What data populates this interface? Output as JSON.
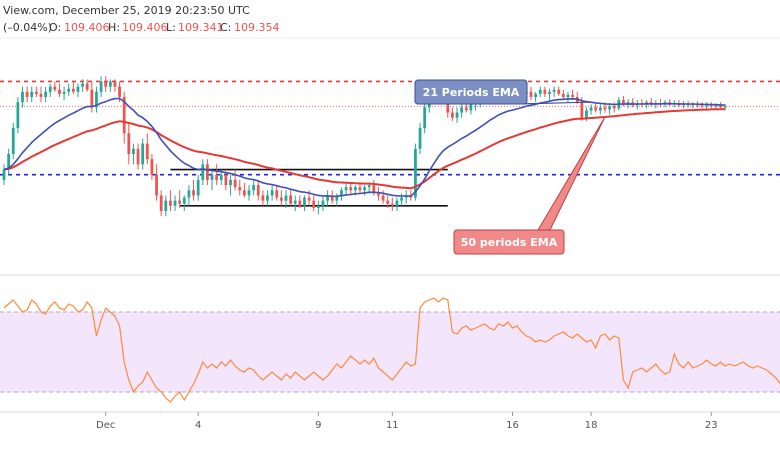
{
  "header": {
    "title": "View.com, December 25, 2019 20:23:50 UTC",
    "change": "(–0.04%)",
    "o_label": "O:",
    "o_value": "109.406",
    "h_label": "H:",
    "h_value": "109.406",
    "l_label": "L:",
    "l_value": "109.341",
    "c_label": "C:",
    "c_value": "109.354"
  },
  "colors": {
    "up": "#26a69a",
    "down": "#ef5350",
    "ema21": "#3f51b5",
    "ema50": "#e53935",
    "resistance": "#e53935",
    "support": "#2222dd",
    "rsi_line": "#ff8a3d",
    "rsi_band": "#f3e5fb",
    "ema21_label_bg": "#7b8fc4",
    "ema50_label_bg": "#f08a8a"
  },
  "chart_data": [
    {
      "type": "candlestick",
      "x_tick_labels": [
        "Dec",
        "4",
        "9",
        "11",
        "16",
        "18",
        "23"
      ],
      "x_tick_index": [
        22,
        42,
        68,
        84,
        110,
        127,
        153
      ],
      "index_range": [
        0,
        167
      ],
      "ylim": [
        108.3,
        110.5
      ],
      "resistance_level": 110.1,
      "support_level": 109.2,
      "range_box_lines": [
        {
          "from": 36,
          "to": 96,
          "level": 109.25
        },
        {
          "from": 38,
          "to": 96,
          "level": 108.9
        }
      ],
      "ohlc": [
        [
          109.15,
          109.3,
          109.1,
          109.25
        ],
        [
          109.25,
          109.45,
          109.2,
          109.4
        ],
        [
          109.4,
          109.7,
          109.35,
          109.65
        ],
        [
          109.65,
          109.95,
          109.6,
          109.9
        ],
        [
          109.9,
          110.05,
          109.85,
          110.0
        ],
        [
          110.0,
          110.05,
          109.9,
          109.95
        ],
        [
          109.95,
          110.05,
          109.9,
          110.0
        ],
        [
          110.0,
          110.05,
          109.95,
          109.98
        ],
        [
          109.98,
          110.05,
          109.9,
          109.95
        ],
        [
          109.95,
          110.05,
          109.9,
          110.0
        ],
        [
          110.0,
          110.08,
          109.95,
          110.05
        ],
        [
          110.05,
          110.1,
          110.0,
          110.02
        ],
        [
          110.02,
          110.08,
          109.95,
          109.98
        ],
        [
          109.98,
          110.05,
          109.92,
          110.0
        ],
        [
          110.0,
          110.08,
          109.96,
          110.03
        ],
        [
          110.03,
          110.1,
          109.98,
          110.0
        ],
        [
          110.0,
          110.08,
          109.95,
          110.05
        ],
        [
          110.05,
          110.12,
          110.0,
          110.08
        ],
        [
          110.08,
          110.12,
          110.0,
          110.02
        ],
        [
          110.02,
          110.1,
          109.8,
          109.85
        ],
        [
          109.85,
          110.05,
          109.8,
          110.0
        ],
        [
          110.0,
          110.15,
          109.95,
          110.1
        ],
        [
          110.1,
          110.15,
          110.0,
          110.05
        ],
        [
          110.05,
          110.12,
          110.0,
          110.1
        ],
        [
          110.1,
          110.12,
          110.0,
          110.05
        ],
        [
          110.05,
          110.1,
          109.9,
          109.95
        ],
        [
          109.95,
          110.0,
          109.5,
          109.6
        ],
        [
          109.6,
          109.7,
          109.3,
          109.4
        ],
        [
          109.4,
          109.5,
          109.3,
          109.45
        ],
        [
          109.45,
          109.5,
          109.25,
          109.3
        ],
        [
          109.3,
          109.55,
          109.25,
          109.5
        ],
        [
          109.5,
          109.6,
          109.3,
          109.35
        ],
        [
          109.35,
          109.4,
          109.15,
          109.2
        ],
        [
          109.2,
          109.3,
          108.95,
          109.0
        ],
        [
          109.0,
          109.05,
          108.8,
          108.85
        ],
        [
          108.85,
          109.0,
          108.8,
          108.95
        ],
        [
          108.95,
          109.05,
          108.85,
          108.9
        ],
        [
          108.9,
          109.0,
          108.85,
          108.95
        ],
        [
          108.95,
          109.05,
          108.88,
          108.92
        ],
        [
          108.92,
          109.0,
          108.85,
          108.98
        ],
        [
          108.98,
          109.1,
          108.9,
          109.05
        ],
        [
          109.05,
          109.15,
          108.95,
          109.0
        ],
        [
          109.0,
          109.2,
          108.95,
          109.15
        ],
        [
          109.15,
          109.35,
          109.1,
          109.3
        ],
        [
          109.3,
          109.35,
          109.1,
          109.15
        ],
        [
          109.15,
          109.25,
          109.05,
          109.2
        ],
        [
          109.2,
          109.3,
          109.1,
          109.15
        ],
        [
          109.15,
          109.25,
          109.1,
          109.2
        ],
        [
          109.2,
          109.25,
          109.05,
          109.1
        ],
        [
          109.1,
          109.2,
          109.0,
          109.15
        ],
        [
          109.15,
          109.25,
          109.05,
          109.08
        ],
        [
          109.08,
          109.15,
          109.0,
          109.05
        ],
        [
          109.05,
          109.12,
          108.98,
          109.0
        ],
        [
          109.0,
          109.1,
          108.95,
          109.05
        ],
        [
          109.05,
          109.15,
          109.0,
          109.1
        ],
        [
          109.1,
          109.15,
          108.95,
          109.0
        ],
        [
          109.0,
          109.05,
          108.9,
          108.95
        ],
        [
          108.95,
          109.05,
          108.9,
          109.0
        ],
        [
          109.0,
          109.1,
          108.95,
          109.05
        ],
        [
          109.05,
          109.1,
          108.95,
          108.98
        ],
        [
          108.98,
          109.05,
          108.9,
          108.95
        ],
        [
          108.95,
          109.05,
          108.88,
          109.0
        ],
        [
          109.0,
          109.05,
          108.9,
          108.92
        ],
        [
          108.92,
          109.0,
          108.85,
          108.95
        ],
        [
          108.95,
          109.0,
          108.88,
          108.9
        ],
        [
          108.9,
          109.0,
          108.85,
          108.98
        ],
        [
          108.98,
          109.05,
          108.9,
          108.95
        ],
        [
          108.95,
          109.0,
          108.85,
          108.88
        ],
        [
          108.88,
          108.95,
          108.82,
          108.9
        ],
        [
          108.9,
          109.0,
          108.85,
          108.95
        ],
        [
          108.95,
          109.05,
          108.9,
          109.0
        ],
        [
          109.0,
          109.05,
          108.92,
          108.95
        ],
        [
          108.95,
          109.02,
          108.9,
          109.0
        ],
        [
          109.0,
          109.08,
          108.95,
          109.05
        ],
        [
          109.05,
          109.12,
          109.0,
          109.08
        ],
        [
          109.08,
          109.12,
          109.0,
          109.05
        ],
        [
          109.05,
          109.1,
          109.0,
          109.08
        ],
        [
          109.08,
          109.12,
          109.02,
          109.05
        ],
        [
          109.05,
          109.1,
          109.0,
          109.08
        ],
        [
          109.08,
          109.12,
          109.02,
          109.1
        ],
        [
          109.1,
          109.15,
          109.0,
          109.02
        ],
        [
          109.02,
          109.08,
          108.95,
          109.0
        ],
        [
          109.0,
          109.05,
          108.92,
          108.95
        ],
        [
          108.95,
          109.0,
          108.88,
          108.92
        ],
        [
          108.92,
          108.98,
          108.85,
          108.9
        ],
        [
          108.9,
          108.98,
          108.85,
          108.95
        ],
        [
          108.95,
          109.02,
          108.9,
          108.98
        ],
        [
          108.98,
          109.05,
          108.92,
          109.0
        ],
        [
          109.0,
          109.05,
          108.95,
          108.98
        ],
        [
          108.98,
          109.5,
          108.95,
          109.45
        ],
        [
          109.45,
          109.7,
          109.4,
          109.65
        ],
        [
          109.65,
          109.9,
          109.6,
          109.85
        ],
        [
          109.85,
          110.05,
          109.8,
          110.0
        ],
        [
          110.0,
          110.08,
          109.95,
          110.02
        ],
        [
          110.02,
          110.08,
          109.98,
          110.05
        ],
        [
          110.05,
          110.1,
          109.98,
          110.0
        ],
        [
          110.0,
          110.05,
          109.75,
          109.8
        ],
        [
          109.8,
          109.85,
          109.72,
          109.75
        ],
        [
          109.75,
          109.85,
          109.7,
          109.8
        ],
        [
          109.8,
          109.88,
          109.75,
          109.85
        ],
        [
          109.85,
          109.9,
          109.8,
          109.82
        ],
        [
          109.82,
          109.9,
          109.78,
          109.88
        ],
        [
          109.88,
          109.95,
          109.82,
          109.9
        ],
        [
          109.9,
          110.0,
          109.85,
          109.95
        ],
        [
          109.95,
          110.05,
          109.9,
          110.0
        ],
        [
          110.0,
          110.08,
          109.95,
          110.05
        ],
        [
          110.05,
          110.1,
          110.0,
          110.02
        ],
        [
          110.02,
          110.08,
          109.98,
          110.05
        ],
        [
          110.05,
          110.08,
          109.98,
          110.0
        ],
        [
          110.0,
          110.05,
          109.95,
          109.98
        ],
        [
          109.98,
          110.02,
          109.9,
          109.92
        ],
        [
          109.92,
          110.0,
          109.88,
          109.95
        ],
        [
          109.95,
          110.02,
          109.9,
          109.98
        ],
        [
          109.98,
          110.05,
          109.92,
          110.0
        ],
        [
          110.0,
          110.05,
          109.92,
          109.95
        ],
        [
          109.95,
          110.0,
          109.9,
          109.98
        ],
        [
          109.98,
          110.05,
          109.95,
          110.02
        ],
        [
          110.02,
          110.05,
          109.95,
          109.98
        ],
        [
          109.98,
          110.03,
          109.92,
          110.0
        ],
        [
          110.0,
          110.05,
          109.95,
          110.02
        ],
        [
          110.02,
          110.05,
          109.96,
          109.98
        ],
        [
          109.98,
          110.02,
          109.92,
          109.95
        ],
        [
          109.95,
          110.0,
          109.9,
          109.97
        ],
        [
          109.97,
          110.02,
          109.92,
          109.95
        ],
        [
          109.95,
          110.0,
          109.88,
          109.9
        ],
        [
          109.9,
          109.95,
          109.72,
          109.75
        ],
        [
          109.75,
          109.85,
          109.72,
          109.82
        ],
        [
          109.82,
          109.88,
          109.78,
          109.85
        ],
        [
          109.85,
          109.9,
          109.8,
          109.82
        ],
        [
          109.82,
          109.88,
          109.78,
          109.85
        ],
        [
          109.85,
          109.9,
          109.8,
          109.83
        ],
        [
          109.83,
          109.88,
          109.78,
          109.86
        ],
        [
          109.86,
          109.9,
          109.8,
          109.84
        ],
        [
          109.84,
          109.95,
          109.82,
          109.92
        ],
        [
          109.92,
          109.96,
          109.86,
          109.88
        ],
        [
          109.88,
          109.93,
          109.84,
          109.9
        ],
        [
          109.9,
          109.94,
          109.85,
          109.87
        ],
        [
          109.87,
          109.92,
          109.83,
          109.89
        ],
        [
          109.89,
          109.93,
          109.85,
          109.88
        ],
        [
          109.88,
          109.92,
          109.84,
          109.9
        ],
        [
          109.9,
          109.94,
          109.86,
          109.88
        ],
        [
          109.88,
          109.92,
          109.84,
          109.89
        ],
        [
          109.89,
          109.93,
          109.85,
          109.88
        ],
        [
          109.88,
          109.92,
          109.85,
          109.9
        ],
        [
          109.9,
          109.93,
          109.86,
          109.88
        ],
        [
          109.88,
          109.92,
          109.85,
          109.89
        ],
        [
          109.89,
          109.92,
          109.85,
          109.87
        ],
        [
          109.87,
          109.91,
          109.84,
          109.88
        ],
        [
          109.88,
          109.91,
          109.85,
          109.87
        ],
        [
          109.87,
          109.9,
          109.84,
          109.88
        ],
        [
          109.88,
          109.91,
          109.85,
          109.87
        ],
        [
          109.87,
          109.9,
          109.84,
          109.86
        ],
        [
          109.86,
          109.9,
          109.83,
          109.87
        ],
        [
          109.87,
          109.9,
          109.84,
          109.86
        ],
        [
          109.86,
          109.89,
          109.83,
          109.87
        ],
        [
          109.87,
          109.9,
          109.84,
          109.85
        ],
        [
          109.85,
          109.88,
          109.82,
          109.86
        ]
      ],
      "annotations": [
        {
          "text": "21 Periods EMA",
          "series": "ema21",
          "pointer_index": 127
        },
        {
          "text": "50 periods EMA",
          "series": "ema50",
          "pointer_index": 130
        }
      ]
    },
    {
      "type": "line",
      "indicator": "RSI",
      "ylim": [
        20,
        85
      ],
      "band_upper": 70,
      "band_lower": 30,
      "values": [
        72,
        74,
        76,
        73,
        70,
        71,
        76,
        74,
        70,
        69,
        73,
        75,
        72,
        71,
        74,
        73,
        70,
        71,
        75,
        72,
        58,
        66,
        72,
        70,
        68,
        63,
        45,
        36,
        30,
        33,
        35,
        40,
        36,
        32,
        30,
        27,
        25,
        28,
        30,
        26,
        30,
        34,
        39,
        45,
        42,
        44,
        42,
        45,
        43,
        46,
        43,
        41,
        40,
        42,
        41,
        38,
        36,
        38,
        40,
        38,
        36,
        39,
        37,
        40,
        38,
        36,
        38,
        40,
        38,
        36,
        38,
        41,
        44,
        42,
        45,
        48,
        46,
        44,
        46,
        44,
        47,
        42,
        40,
        38,
        36,
        39,
        42,
        45,
        43,
        44,
        72,
        75,
        76,
        77,
        75,
        77,
        76,
        60,
        59,
        62,
        63,
        61,
        62,
        63,
        64,
        62,
        61,
        64,
        63,
        65,
        62,
        63,
        60,
        58,
        57,
        55,
        56,
        55,
        56,
        58,
        59,
        60,
        58,
        57,
        59,
        57,
        55,
        56,
        52,
        58,
        59,
        56,
        58,
        57,
        36,
        32,
        40,
        41,
        42,
        40,
        42,
        44,
        41,
        39,
        40,
        49,
        44,
        42,
        45,
        42,
        43,
        44,
        46,
        44,
        43,
        45,
        43,
        44,
        43,
        44,
        45,
        43,
        42,
        43,
        42,
        41,
        39,
        37,
        34
      ]
    }
  ]
}
